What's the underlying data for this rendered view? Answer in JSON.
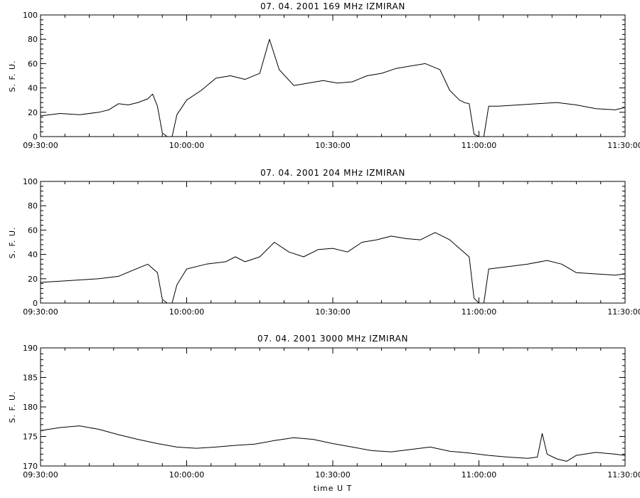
{
  "chart_data": [
    {
      "type": "line",
      "title": "07. 04. 2001   169 MHz   IZMIRAN",
      "ylabel": "S. F. U.",
      "xlabel": "",
      "xlim": [
        "09:30:00",
        "11:30:00"
      ],
      "xticks": [
        "09:30:00",
        "10:00:00",
        "10:30:00",
        "11:00:00",
        "11:30:00"
      ],
      "ylim": [
        0,
        100
      ],
      "yticks": [
        0,
        20,
        40,
        60,
        80,
        100
      ],
      "grid": false,
      "series": [
        {
          "x": [
            "09:30:00",
            "09:34:00",
            "09:38:00",
            "09:42:00",
            "09:44:00",
            "09:46:00",
            "09:48:00",
            "09:50:00",
            "09:52:00",
            "09:53:00",
            "09:54:00",
            "09:55:00",
            "09:56:00",
            "09:57:00",
            "09:58:00",
            "10:00:00",
            "10:03:00",
            "10:06:00",
            "10:09:00",
            "10:12:00",
            "10:15:00",
            "10:17:00",
            "10:19:00",
            "10:22:00",
            "10:25:00",
            "10:28:00",
            "10:31:00",
            "10:34:00",
            "10:37:00",
            "10:40:00",
            "10:43:00",
            "10:46:00",
            "10:49:00",
            "10:52:00",
            "10:54:00",
            "10:56:00",
            "10:57:00",
            "10:58:00",
            "10:59:00",
            "11:00:00",
            "11:01:00",
            "11:02:00",
            "11:04:00",
            "11:08:00",
            "11:12:00",
            "11:16:00",
            "11:20:00",
            "11:24:00",
            "11:28:00",
            "11:30:00"
          ],
          "values": [
            17,
            19,
            18,
            20,
            22,
            27,
            26,
            28,
            31,
            35,
            25,
            3,
            0,
            0,
            18,
            30,
            38,
            48,
            50,
            47,
            52,
            80,
            55,
            42,
            44,
            46,
            44,
            45,
            50,
            52,
            56,
            58,
            60,
            55,
            38,
            30,
            28,
            27,
            2,
            0,
            0,
            25,
            25,
            26,
            27,
            28,
            26,
            23,
            22,
            24
          ]
        }
      ]
    },
    {
      "type": "line",
      "title": "07. 04. 2001   204 MHz   IZMIRAN",
      "ylabel": "S. F. U.",
      "xlabel": "",
      "xlim": [
        "09:30:00",
        "11:30:00"
      ],
      "xticks": [
        "09:30:00",
        "10:00:00",
        "10:30:00",
        "11:00:00",
        "11:30:00"
      ],
      "ylim": [
        0,
        100
      ],
      "yticks": [
        0,
        20,
        40,
        60,
        80,
        100
      ],
      "grid": false,
      "series": [
        {
          "x": [
            "09:30:00",
            "09:34:00",
            "09:38:00",
            "09:42:00",
            "09:46:00",
            "09:49:00",
            "09:52:00",
            "09:54:00",
            "09:55:00",
            "09:56:00",
            "09:57:00",
            "09:58:00",
            "10:00:00",
            "10:04:00",
            "10:08:00",
            "10:10:00",
            "10:12:00",
            "10:15:00",
            "10:18:00",
            "10:21:00",
            "10:24:00",
            "10:27:00",
            "10:30:00",
            "10:33:00",
            "10:36:00",
            "10:39:00",
            "10:42:00",
            "10:45:00",
            "10:48:00",
            "10:51:00",
            "10:54:00",
            "10:56:00",
            "10:58:00",
            "10:59:00",
            "11:00:00",
            "11:01:00",
            "11:02:00",
            "11:06:00",
            "11:10:00",
            "11:14:00",
            "11:17:00",
            "11:20:00",
            "11:24:00",
            "11:28:00",
            "11:30:00"
          ],
          "values": [
            17,
            18,
            19,
            20,
            22,
            27,
            32,
            25,
            3,
            0,
            0,
            15,
            28,
            32,
            34,
            38,
            34,
            38,
            50,
            42,
            38,
            44,
            45,
            42,
            50,
            52,
            55,
            53,
            52,
            58,
            52,
            45,
            38,
            4,
            0,
            0,
            28,
            30,
            32,
            35,
            32,
            25,
            24,
            23,
            24
          ]
        }
      ]
    },
    {
      "type": "line",
      "title": "07. 04. 2001   3000 MHz   IZMIRAN",
      "ylabel": "S. F. U.",
      "xlabel": "time  U T",
      "xlim": [
        "09:30:00",
        "11:30:00"
      ],
      "xticks": [
        "09:30:00",
        "10:00:00",
        "10:30:00",
        "11:00:00",
        "11:30:00"
      ],
      "ylim": [
        170,
        190
      ],
      "yticks": [
        170,
        175,
        180,
        185,
        190
      ],
      "grid": false,
      "series": [
        {
          "x": [
            "09:30:00",
            "09:34:00",
            "09:38:00",
            "09:42:00",
            "09:46:00",
            "09:50:00",
            "09:54:00",
            "09:58:00",
            "10:02:00",
            "10:06:00",
            "10:10:00",
            "10:14:00",
            "10:18:00",
            "10:22:00",
            "10:26:00",
            "10:30:00",
            "10:34:00",
            "10:38:00",
            "10:42:00",
            "10:46:00",
            "10:50:00",
            "10:54:00",
            "10:58:00",
            "11:02:00",
            "11:06:00",
            "11:10:00",
            "11:12:00",
            "11:13:00",
            "11:14:00",
            "11:16:00",
            "11:18:00",
            "11:20:00",
            "11:24:00",
            "11:28:00",
            "11:30:00"
          ],
          "values": [
            176,
            176.5,
            176.8,
            176.2,
            175.3,
            174.5,
            173.8,
            173.2,
            173.0,
            173.2,
            173.5,
            173.7,
            174.3,
            174.8,
            174.5,
            173.8,
            173.2,
            172.6,
            172.4,
            172.8,
            173.2,
            172.5,
            172.2,
            171.8,
            171.5,
            171.3,
            171.5,
            175.5,
            172.0,
            171.2,
            170.8,
            171.8,
            172.3,
            172.0,
            171.8
          ]
        }
      ]
    }
  ]
}
